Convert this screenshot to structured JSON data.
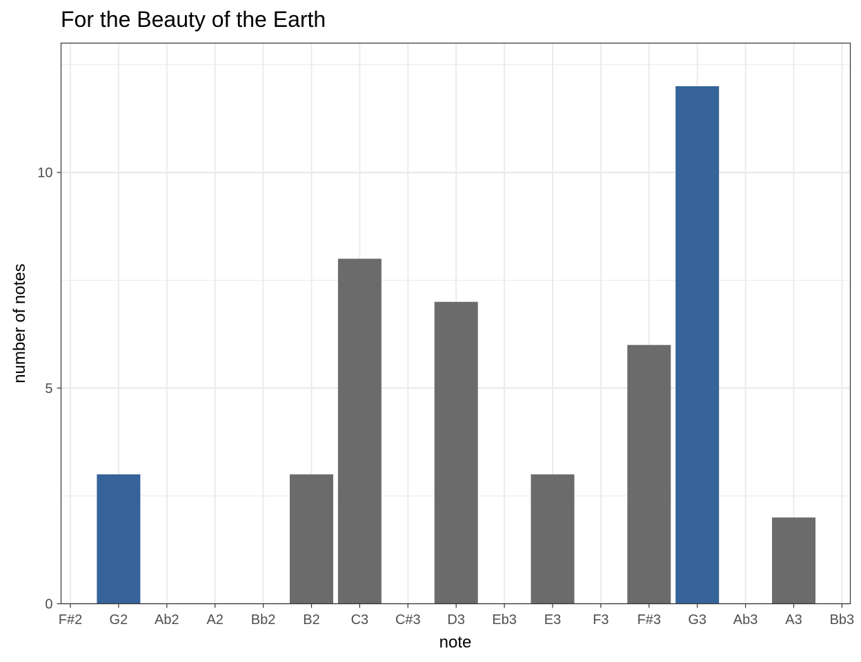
{
  "chart_data": {
    "type": "bar",
    "title": "For the Beauty of the Earth",
    "xlabel": "note",
    "ylabel": "number of notes",
    "categories": [
      "F#2",
      "G2",
      "Ab2",
      "A2",
      "Bb2",
      "B2",
      "C3",
      "C#3",
      "D3",
      "Eb3",
      "E3",
      "F3",
      "F#3",
      "G3",
      "Ab3",
      "A3",
      "Bb3"
    ],
    "values": [
      0,
      3,
      0,
      0,
      0,
      3,
      8,
      0,
      7,
      0,
      3,
      0,
      6,
      12,
      0,
      2,
      0
    ],
    "highlighted": [
      "G2",
      "G3"
    ],
    "colors": {
      "default": "#6b6b6b",
      "highlight": "#366399"
    },
    "ylim": [
      0,
      13
    ],
    "yticks": [
      0,
      5,
      10
    ],
    "grid": true,
    "legend": "none"
  }
}
